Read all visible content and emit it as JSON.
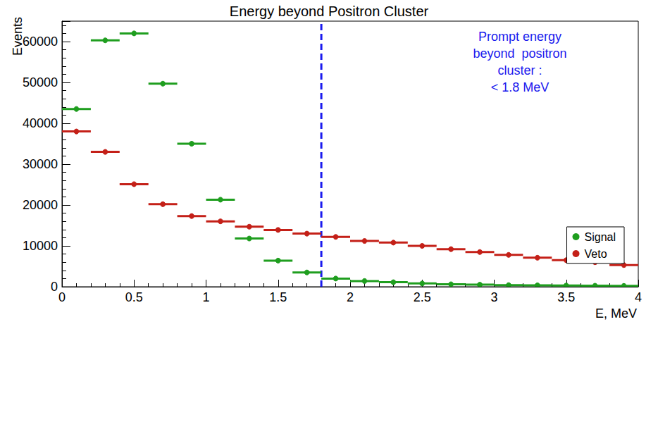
{
  "chart_data": {
    "type": "histogram",
    "title": "Energy beyond Positron Cluster",
    "x_label": "E, MeV",
    "y_label": "Events",
    "bins": [
      0,
      0.2,
      0.4,
      0.6,
      0.8,
      1,
      1.2,
      1.4,
      1.6,
      1.8,
      2,
      2.2,
      2.4,
      2.6,
      2.8,
      3,
      3.2,
      3.4,
      3.6,
      3.8,
      4
    ],
    "series": [
      {
        "name": "Signal",
        "color": "#1f9e1f",
        "marker": "circle",
        "values": [
          43500,
          60300,
          62000,
          49700,
          35000,
          21300,
          11800,
          6400,
          3500,
          2000,
          1400,
          1100,
          800,
          600,
          500,
          400,
          350,
          300,
          250,
          200
        ]
      },
      {
        "name": "Veto",
        "color": "#c42018",
        "marker": "circle",
        "values": [
          38000,
          33000,
          25100,
          20200,
          17300,
          16000,
          14700,
          13900,
          13000,
          12200,
          11200,
          10800,
          10000,
          9200,
          8500,
          7800,
          7100,
          6500,
          6000,
          5300
        ]
      }
    ],
    "xlim": [
      0,
      4
    ],
    "xticks": [
      0,
      0.5,
      1,
      1.5,
      2,
      2.5,
      3,
      3.5,
      4
    ],
    "ylim": [
      0,
      65000
    ],
    "yticks": [
      0,
      10000,
      20000,
      30000,
      40000,
      50000,
      60000
    ],
    "legend": "lower right",
    "annotations": [
      {
        "x": 1.8,
        "text": "Prompt energy\nbeyond  positron\ncluster :\n< 1.8 MeV",
        "color": "#1a1aee",
        "line_style": "dashed"
      }
    ]
  }
}
